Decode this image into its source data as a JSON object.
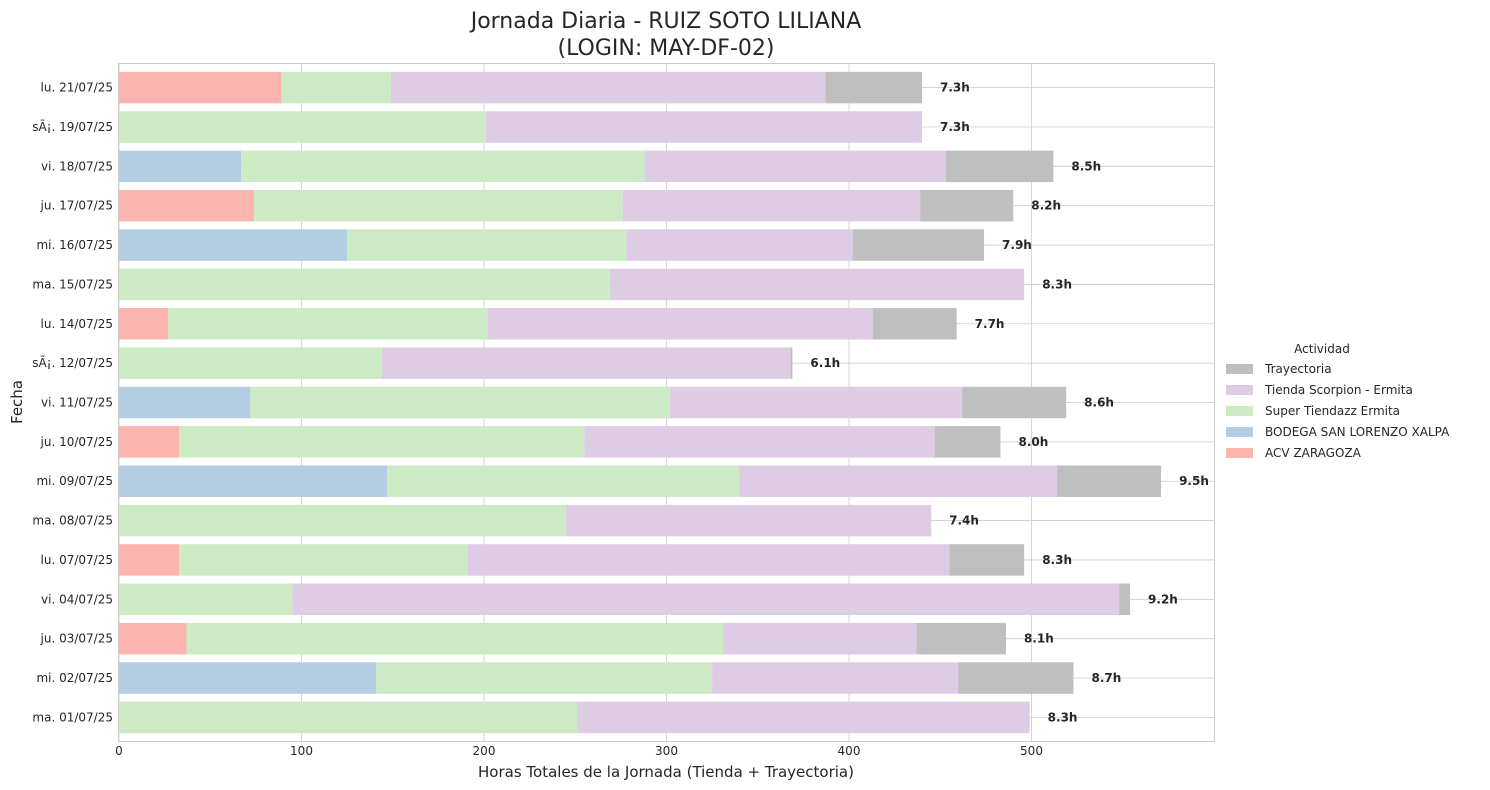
{
  "chart_data": {
    "type": "bar",
    "orientation": "horizontal",
    "stacked": true,
    "title_line1": "Jornada Diaria - RUIZ SOTO LILIANA",
    "title_line2": "(LOGIN: MAY-DF-02)",
    "xlabel": "Horas Totales de la Jornada (Tienda + Trayectoria)",
    "ylabel": "Fecha",
    "xlim": [
      0,
      600
    ],
    "xticks": [
      0,
      100,
      200,
      300,
      400,
      500
    ],
    "grid": true,
    "legend": {
      "title": "Actividad",
      "placement": "center-right",
      "order": [
        "Trayectoria",
        "Tienda Scorpion - Ermita",
        "Super Tiendazz Ermita",
        "BODEGA SAN LORENZO XALPA",
        "ACV ZARAGOZA"
      ]
    },
    "categories": [
      "lu. 21/07/25",
      "sÃ¡. 19/07/25",
      "vi. 18/07/25",
      "ju. 17/07/25",
      "mi. 16/07/25",
      "ma. 15/07/25",
      "lu. 14/07/25",
      "sÃ¡. 12/07/25",
      "vi. 11/07/25",
      "ju. 10/07/25",
      "mi. 09/07/25",
      "ma. 08/07/25",
      "lu. 07/07/25",
      "vi. 04/07/25",
      "ju. 03/07/25",
      "mi. 02/07/25",
      "ma. 01/07/25"
    ],
    "series": [
      {
        "name": "ACV ZARAGOZA",
        "color": "#fbb4ae",
        "values": [
          89,
          0,
          0,
          74,
          0,
          0,
          27,
          0,
          0,
          33,
          0,
          0,
          33,
          0,
          37,
          0,
          0
        ]
      },
      {
        "name": "BODEGA SAN LORENZO XALPA",
        "color": "#b3cde3",
        "values": [
          0,
          0,
          67,
          0,
          125,
          0,
          0,
          0,
          72,
          0,
          147,
          0,
          0,
          0,
          0,
          141,
          0
        ]
      },
      {
        "name": "Super Tiendazz Ermita",
        "color": "#ccebc5",
        "values": [
          60,
          201,
          221,
          202,
          153,
          269,
          175,
          144,
          230,
          222,
          193,
          245,
          158,
          95,
          294,
          184,
          251
        ]
      },
      {
        "name": "Tienda Scorpion - Ermita",
        "color": "#decbe4",
        "values": [
          238,
          239,
          165,
          163,
          124,
          227,
          211,
          224,
          160,
          192,
          174,
          200,
          264,
          453,
          106,
          135,
          248
        ]
      },
      {
        "name": "Trayectoria",
        "color": "#bfbfbf",
        "values": [
          53,
          0,
          59,
          51,
          72,
          0,
          46,
          1,
          57,
          36,
          57,
          0,
          41,
          6,
          49,
          63,
          0
        ]
      }
    ],
    "total_labels": [
      "7.3h",
      "7.3h",
      "8.5h",
      "8.2h",
      "7.9h",
      "8.3h",
      "7.7h",
      "6.1h",
      "8.6h",
      "8.0h",
      "9.5h",
      "7.4h",
      "8.3h",
      "9.2h",
      "8.1h",
      "8.7h",
      "8.3h"
    ]
  }
}
